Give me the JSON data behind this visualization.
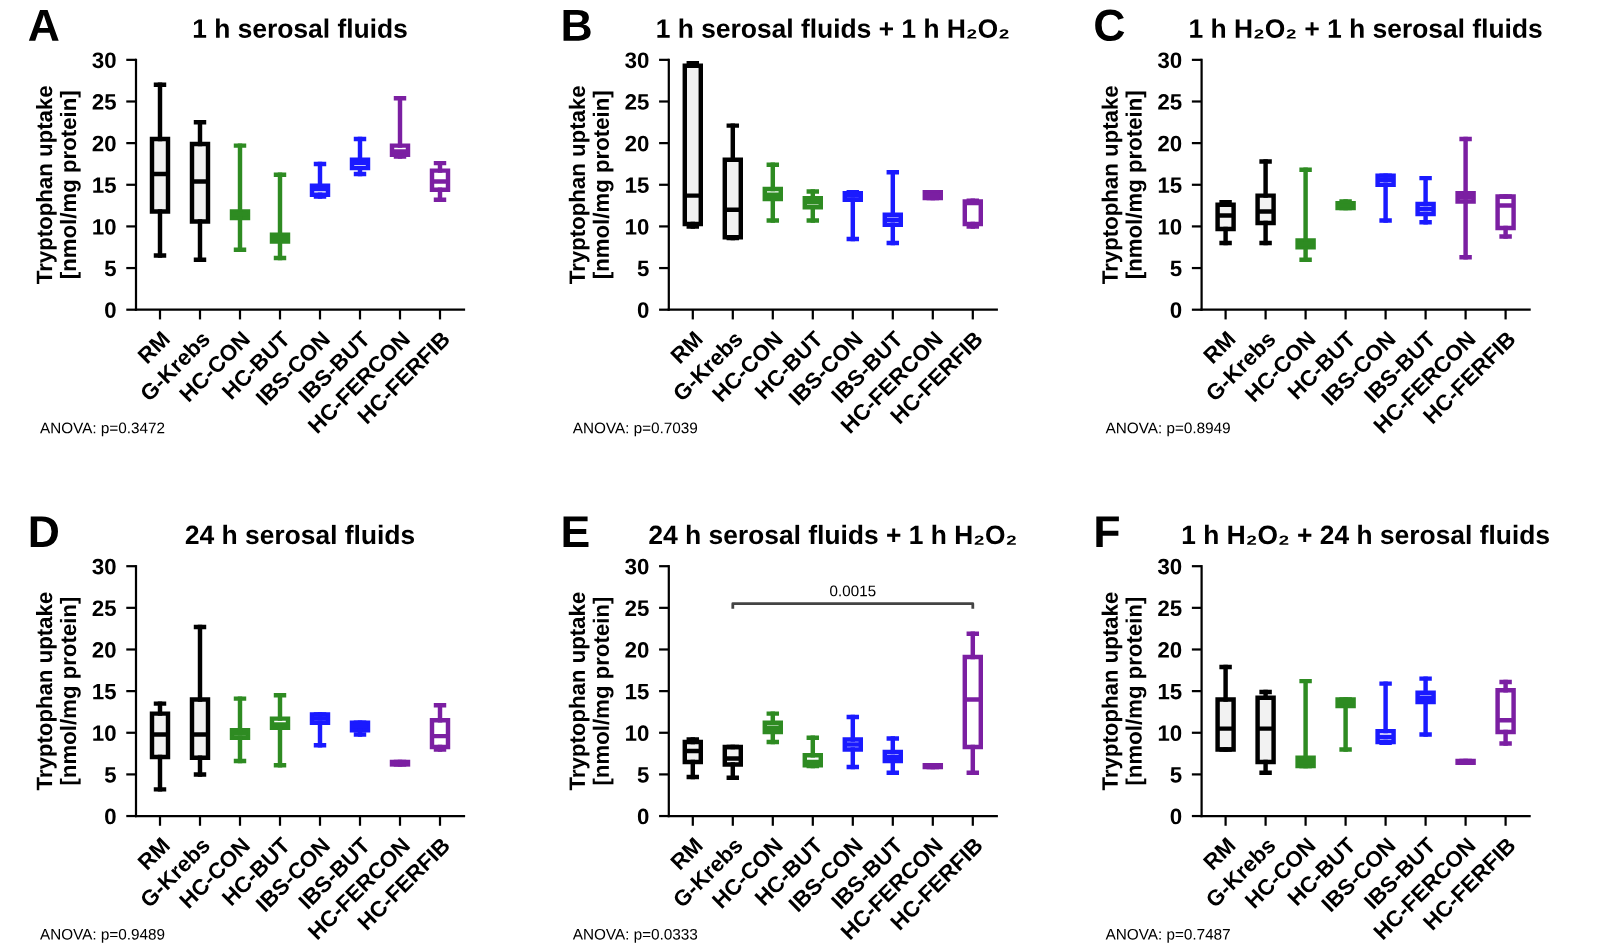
{
  "chart_data": [
    {
      "type": "box",
      "title": "1 h serosal fluids",
      "ylabel": "Tryptophan uptake\n[nmol/mg protein]",
      "categories": [
        "RM",
        "G-Krebs",
        "HC-CON",
        "HC-BUT",
        "IBS-CON",
        "IBS-BUT",
        "HC-FERCON",
        "HC-FERFIB"
      ],
      "colors": [
        "#000000",
        "#000000",
        "#2e8b22",
        "#2e8b22",
        "#1a1aff",
        "#1a1aff",
        "#7b1fa2",
        "#7b1fa2"
      ],
      "ylim": [
        0,
        30
      ],
      "yticks": [
        0,
        5,
        10,
        15,
        20,
        25,
        30
      ],
      "grid": false,
      "annotations": [
        "A",
        "ANOVA: p=0.3472"
      ],
      "boxes": [
        {
          "low": 6.5,
          "q1": 11.8,
          "median": 16.3,
          "q3": 20.5,
          "high": 27
        },
        {
          "low": 6,
          "q1": 10.6,
          "median": 15.4,
          "q3": 19.9,
          "high": 22.5
        },
        {
          "low": 7.2,
          "q1": 11,
          "median": 11.5,
          "q3": 11.8,
          "high": 19.7
        },
        {
          "low": 6.2,
          "q1": 8.2,
          "median": 8.6,
          "q3": 9,
          "high": 16.2
        },
        {
          "low": 13.6,
          "q1": 13.8,
          "median": 14.5,
          "q3": 14.9,
          "high": 17.5
        },
        {
          "low": 16.3,
          "q1": 17,
          "median": 17.6,
          "q3": 18,
          "high": 20.5
        },
        {
          "low": 18.4,
          "q1": 18.6,
          "median": 19,
          "q3": 19.7,
          "high": 25.4
        },
        {
          "low": 13.2,
          "q1": 14.4,
          "median": 15.4,
          "q3": 16.7,
          "high": 17.6
        }
      ]
    },
    {
      "type": "box",
      "title": "1 h serosal fluids + 1 h H₂O₂",
      "ylabel": "Tryptophan uptake\n[nmol/mg protein]",
      "categories": [
        "RM",
        "G-Krebs",
        "HC-CON",
        "HC-BUT",
        "IBS-CON",
        "IBS-BUT",
        "HC-FERCON",
        "HC-FERFIB"
      ],
      "colors": [
        "#000000",
        "#000000",
        "#2e8b22",
        "#2e8b22",
        "#1a1aff",
        "#1a1aff",
        "#7b1fa2",
        "#7b1fa2"
      ],
      "ylim": [
        0,
        30
      ],
      "yticks": [
        0,
        5,
        10,
        15,
        20,
        25,
        30
      ],
      "grid": false,
      "annotations": [
        "B",
        "ANOVA: p=0.7039"
      ],
      "boxes": [
        {
          "low": 10,
          "q1": 10.3,
          "median": 13.7,
          "q3": 29.3,
          "high": 29.6
        },
        {
          "low": 8.6,
          "q1": 8.7,
          "median": 12,
          "q3": 18,
          "high": 22.1
        },
        {
          "low": 10.7,
          "q1": 13.3,
          "median": 13.8,
          "q3": 14.5,
          "high": 17.4
        },
        {
          "low": 10.7,
          "q1": 12.3,
          "median": 12.9,
          "q3": 13.4,
          "high": 14.2
        },
        {
          "low": 8.5,
          "q1": 13.2,
          "median": 13.7,
          "q3": 14,
          "high": 14.1
        },
        {
          "low": 8,
          "q1": 10.2,
          "median": 10.8,
          "q3": 11.4,
          "high": 16.5
        },
        {
          "low": 13.4,
          "q1": 13.4,
          "median": 13.8,
          "q3": 14.1,
          "high": 14.1
        },
        {
          "low": 10,
          "q1": 10.3,
          "median": 12.8,
          "q3": 13,
          "high": 13.1
        }
      ]
    },
    {
      "type": "box",
      "title": "1 h H₂O₂ + 1 h serosal fluids",
      "ylabel": "Tryptophan uptake\n[nmol/mg protein]",
      "categories": [
        "RM",
        "G-Krebs",
        "HC-CON",
        "HC-BUT",
        "IBS-CON",
        "IBS-BUT",
        "HC-FERCON",
        "HC-FERFIB"
      ],
      "colors": [
        "#000000",
        "#000000",
        "#2e8b22",
        "#2e8b22",
        "#1a1aff",
        "#1a1aff",
        "#7b1fa2",
        "#7b1fa2"
      ],
      "ylim": [
        0,
        30
      ],
      "yticks": [
        0,
        5,
        10,
        15,
        20,
        25,
        30
      ],
      "grid": false,
      "annotations": [
        "C",
        "ANOVA: p=0.8949"
      ],
      "boxes": [
        {
          "low": 8,
          "q1": 9.7,
          "median": 11.3,
          "q3": 12.6,
          "high": 12.9
        },
        {
          "low": 8,
          "q1": 10.4,
          "median": 11.8,
          "q3": 13.7,
          "high": 17.8
        },
        {
          "low": 6,
          "q1": 7.5,
          "median": 7.9,
          "q3": 8.3,
          "high": 16.8
        },
        {
          "low": 12.2,
          "q1": 12.2,
          "median": 12.5,
          "q3": 12.8,
          "high": 13
        },
        {
          "low": 10.7,
          "q1": 15,
          "median": 15.6,
          "q3": 16.1,
          "high": 16.1
        },
        {
          "low": 10.5,
          "q1": 11.5,
          "median": 12.1,
          "q3": 12.7,
          "high": 15.8
        },
        {
          "low": 6.3,
          "q1": 13,
          "median": 13.5,
          "q3": 14,
          "high": 20.5
        },
        {
          "low": 8.8,
          "q1": 9.8,
          "median": 12.5,
          "q3": 13.6,
          "high": 13.6
        }
      ]
    },
    {
      "type": "box",
      "title": "24 h serosal fluids",
      "ylabel": "Tryptophan uptake\n[nmol/mg protein]",
      "categories": [
        "RM",
        "G-Krebs",
        "HC-CON",
        "HC-BUT",
        "IBS-CON",
        "IBS-BUT",
        "HC-FERCON",
        "HC-FERFIB"
      ],
      "colors": [
        "#000000",
        "#000000",
        "#2e8b22",
        "#2e8b22",
        "#1a1aff",
        "#1a1aff",
        "#7b1fa2",
        "#7b1fa2"
      ],
      "ylim": [
        0,
        30
      ],
      "yticks": [
        0,
        5,
        10,
        15,
        20,
        25,
        30
      ],
      "grid": false,
      "annotations": [
        "D",
        "ANOVA: p=0.9489"
      ],
      "boxes": [
        {
          "low": 3.2,
          "q1": 7.1,
          "median": 9.8,
          "q3": 12.3,
          "high": 13.5
        },
        {
          "low": 5,
          "q1": 7,
          "median": 9.8,
          "q3": 14,
          "high": 22.7
        },
        {
          "low": 6.6,
          "q1": 9.4,
          "median": 9.9,
          "q3": 10.3,
          "high": 14.1
        },
        {
          "low": 6.1,
          "q1": 10.6,
          "median": 11,
          "q3": 11.7,
          "high": 14.5
        },
        {
          "low": 8.5,
          "q1": 11.2,
          "median": 11.7,
          "q3": 12.2,
          "high": 12.2
        },
        {
          "low": 9.8,
          "q1": 10.3,
          "median": 10.8,
          "q3": 11.2,
          "high": 11.2
        },
        {
          "low": 6.2,
          "q1": 6.2,
          "median": 6.3,
          "q3": 6.5,
          "high": 6.5
        },
        {
          "low": 8,
          "q1": 8.3,
          "median": 9.6,
          "q3": 11.5,
          "high": 13.3
        }
      ]
    },
    {
      "type": "box",
      "title": "24 h serosal fluids + 1 h H₂O₂",
      "ylabel": "Tryptophan uptake\n[nmol/mg protein]",
      "categories": [
        "RM",
        "G-Krebs",
        "HC-CON",
        "HC-BUT",
        "IBS-CON",
        "IBS-BUT",
        "HC-FERCON",
        "HC-FERFIB"
      ],
      "colors": [
        "#000000",
        "#000000",
        "#2e8b22",
        "#2e8b22",
        "#1a1aff",
        "#1a1aff",
        "#7b1fa2",
        "#7b1fa2"
      ],
      "ylim": [
        0,
        30
      ],
      "yticks": [
        0,
        5,
        10,
        15,
        20,
        25,
        30
      ],
      "grid": false,
      "annotations": [
        "E",
        "ANOVA: p=0.0333",
        "0.0015"
      ],
      "boxes": [
        {
          "low": 4.7,
          "q1": 6.5,
          "median": 7.8,
          "q3": 8.9,
          "high": 9.2
        },
        {
          "low": 4.6,
          "q1": 6.2,
          "median": 6.9,
          "q3": 8.3,
          "high": 8.3
        },
        {
          "low": 8.9,
          "q1": 10.1,
          "median": 10.6,
          "q3": 11.2,
          "high": 12.3
        },
        {
          "low": 6,
          "q1": 6.1,
          "median": 6.5,
          "q3": 7.3,
          "high": 9.4
        },
        {
          "low": 5.9,
          "q1": 8,
          "median": 8.6,
          "q3": 9.2,
          "high": 11.9
        },
        {
          "low": 5.2,
          "q1": 6.6,
          "median": 7.1,
          "q3": 7.7,
          "high": 9.3
        },
        {
          "low": 5.9,
          "q1": 5.9,
          "median": 6,
          "q3": 6.1,
          "high": 6.1
        },
        {
          "low": 5.2,
          "q1": 8.3,
          "median": 14,
          "q3": 19.1,
          "high": 21.9
        }
      ]
    },
    {
      "type": "box",
      "title": "1 h H₂O₂ + 24 h serosal fluids",
      "ylabel": "Tryptophan uptake\n[nmol/mg protein]",
      "categories": [
        "RM",
        "G-Krebs",
        "HC-CON",
        "HC-BUT",
        "IBS-CON",
        "IBS-BUT",
        "HC-FERCON",
        "HC-FERFIB"
      ],
      "colors": [
        "#000000",
        "#000000",
        "#2e8b22",
        "#2e8b22",
        "#1a1aff",
        "#1a1aff",
        "#7b1fa2",
        "#7b1fa2"
      ],
      "ylim": [
        0,
        30
      ],
      "yticks": [
        0,
        5,
        10,
        15,
        20,
        25,
        30
      ],
      "grid": false,
      "annotations": [
        "F",
        "ANOVA: p=0.7487"
      ],
      "boxes": [
        {
          "low": 8,
          "q1": 8,
          "median": 10.5,
          "q3": 14,
          "high": 17.9
        },
        {
          "low": 5.2,
          "q1": 6.5,
          "median": 10.5,
          "q3": 14.2,
          "high": 14.9
        },
        {
          "low": 6,
          "q1": 6,
          "median": 6.5,
          "q3": 7,
          "high": 16.2
        },
        {
          "low": 8,
          "q1": 13.2,
          "median": 13.7,
          "q3": 14,
          "high": 14
        },
        {
          "low": 8.8,
          "q1": 8.9,
          "median": 9.5,
          "q3": 10.2,
          "high": 15.9
        },
        {
          "low": 9.8,
          "q1": 13.7,
          "median": 14.2,
          "q3": 14.8,
          "high": 16.5
        },
        {
          "low": 6.4,
          "q1": 6.4,
          "median": 6.4,
          "q3": 6.6,
          "high": 6.6
        },
        {
          "low": 8.7,
          "q1": 10.1,
          "median": 11.5,
          "q3": 15.1,
          "high": 16.1
        }
      ]
    }
  ]
}
